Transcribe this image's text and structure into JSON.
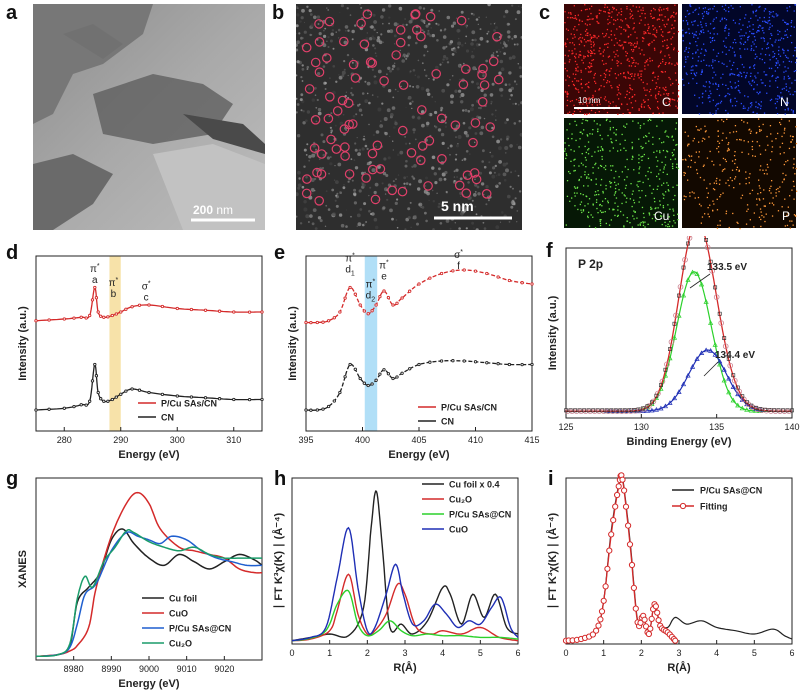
{
  "panels": {
    "a": {
      "label": "a",
      "scale_value": "200",
      "scale_unit": " nm"
    },
    "b": {
      "label": "b",
      "scale": "5 nm"
    },
    "c": {
      "label": "c",
      "scale": "10 nm",
      "tiles": [
        "C",
        "N",
        "Cu",
        "P"
      ]
    },
    "d": {
      "label": "d"
    },
    "e": {
      "label": "e"
    },
    "f": {
      "label": "f"
    },
    "g": {
      "label": "g"
    },
    "h": {
      "label": "h"
    },
    "i": {
      "label": "i"
    }
  },
  "colors": {
    "red": "#d42a2a",
    "black": "#222222",
    "green": "#2bd12b",
    "blue": "#1f2fb5",
    "navy": "#1c1c8a",
    "teal": "#1a9c6a",
    "highlight_yellow": "#f6dfa0",
    "highlight_blue": "#a9dcf6"
  },
  "chart_data": [
    {
      "id": "d",
      "type": "line",
      "xlabel": "Energy (eV)",
      "ylabel": "Intensity (a.u.)",
      "xlim": [
        275,
        315
      ],
      "xticks": [
        "280",
        "290",
        "300",
        "310"
      ],
      "highlight": [
        288,
        290
      ],
      "annotations": [
        {
          "sym": "π",
          "sup": "*",
          "letter": "a",
          "x": 285.4
        },
        {
          "sym": "π",
          "sup": "*",
          "letter": "b",
          "x": 288.7
        },
        {
          "sym": "σ",
          "sup": "*",
          "letter": "c",
          "x": 294.5
        }
      ],
      "series": [
        {
          "name": "P/Cu SAs/CN",
          "color": "#d42a2a",
          "x": [
            275,
            280,
            283,
            284.5,
            285.4,
            286,
            287,
            288.5,
            290,
            292,
            295,
            300,
            305,
            310,
            315
          ],
          "y": [
            0.63,
            0.64,
            0.65,
            0.66,
            0.82,
            0.68,
            0.65,
            0.66,
            0.68,
            0.71,
            0.72,
            0.7,
            0.69,
            0.68,
            0.68
          ]
        },
        {
          "name": "CN",
          "color": "#222222",
          "x": [
            275,
            280,
            283,
            284.5,
            285.4,
            286,
            287,
            288.5,
            290,
            292,
            295,
            300,
            305,
            310,
            315
          ],
          "y": [
            0.12,
            0.13,
            0.15,
            0.17,
            0.38,
            0.22,
            0.17,
            0.18,
            0.21,
            0.24,
            0.22,
            0.2,
            0.19,
            0.18,
            0.18
          ]
        }
      ]
    },
    {
      "id": "e",
      "type": "line",
      "xlabel": "Energy (eV)",
      "ylabel": "Intensity (a.u.)",
      "xlim": [
        395,
        415
      ],
      "xticks": [
        "395",
        "400",
        "405",
        "410",
        "415"
      ],
      "highlight": [
        400.2,
        401.3
      ],
      "annotations": [
        {
          "sym": "π",
          "sup": "*",
          "letter": "d",
          "sub": "1",
          "x": 398.9
        },
        {
          "sym": "π",
          "sup": "*",
          "letter": "d",
          "sub": "2",
          "x": 400.7
        },
        {
          "sym": "π",
          "sup": "*",
          "letter": "e",
          "x": 401.9
        },
        {
          "sym": "σ",
          "sup": "*",
          "letter": "f",
          "x": 408.5
        }
      ],
      "series": [
        {
          "name": "P/Cu SAs/CN",
          "color": "#d42a2a",
          "x": [
            395,
            396,
            397,
            398,
            398.9,
            399.8,
            400.5,
            401.2,
            401.9,
            402.7,
            403.5,
            405,
            407,
            409,
            411,
            413,
            415
          ],
          "y": [
            0.62,
            0.62,
            0.63,
            0.68,
            0.82,
            0.72,
            0.67,
            0.72,
            0.8,
            0.72,
            0.76,
            0.84,
            0.9,
            0.92,
            0.9,
            0.86,
            0.84
          ]
        },
        {
          "name": "CN",
          "color": "#222222",
          "x": [
            395,
            396,
            397,
            398,
            398.9,
            399.8,
            400.5,
            401.2,
            401.9,
            402.7,
            403.5,
            405,
            407,
            409,
            411,
            413,
            415
          ],
          "y": [
            0.12,
            0.12,
            0.14,
            0.22,
            0.38,
            0.3,
            0.26,
            0.29,
            0.35,
            0.3,
            0.33,
            0.38,
            0.4,
            0.4,
            0.39,
            0.38,
            0.38
          ]
        }
      ]
    },
    {
      "id": "f",
      "type": "scatter",
      "title": "P 2p",
      "xlabel": "Binding Energy (eV)",
      "ylabel": "Intensity (a.u.)",
      "xlim": [
        125,
        140
      ],
      "xticks": [
        "125",
        "130",
        "135",
        "140"
      ],
      "peaks": [
        {
          "label": "133.5 eV",
          "center": 133.5,
          "amp": 0.82,
          "sigma": 1.15,
          "color": "#2bd12b"
        },
        {
          "label": "134.4 eV",
          "center": 134.4,
          "amp": 0.36,
          "sigma": 1.25,
          "color": "#1f2fb5"
        }
      ],
      "envelope_color": "#d42a2a",
      "data_color": "#c98090"
    },
    {
      "id": "g",
      "type": "line",
      "xlabel": "Energy (eV)",
      "ylabel": "XANES",
      "xlim": [
        8970,
        9030
      ],
      "xticks": [
        "8980",
        "8990",
        "9000",
        "9010",
        "9020"
      ],
      "series": [
        {
          "name": "Cu foil",
          "color": "#222222",
          "x": [
            8970,
            8976,
            8979,
            8981,
            8984,
            8987,
            8990,
            8993,
            8996,
            9000,
            9004,
            9008,
            9012,
            9016,
            9020,
            9024,
            9028,
            9030
          ],
          "y": [
            0.02,
            0.03,
            0.08,
            0.32,
            0.4,
            0.48,
            0.66,
            0.72,
            0.64,
            0.56,
            0.52,
            0.58,
            0.54,
            0.5,
            0.54,
            0.58,
            0.55,
            0.52
          ]
        },
        {
          "name": "CuO",
          "color": "#d42a2a",
          "x": [
            8970,
            8976,
            8979,
            8981,
            8984,
            8986,
            8990,
            8994,
            8997,
            9000,
            9003,
            9008,
            9012,
            9016,
            9020,
            9024,
            9028,
            9030
          ],
          "y": [
            0.02,
            0.03,
            0.05,
            0.08,
            0.18,
            0.4,
            0.68,
            0.86,
            0.92,
            0.86,
            0.72,
            0.62,
            0.6,
            0.58,
            0.56,
            0.5,
            0.48,
            0.48
          ]
        },
        {
          "name": "P/Cu SAs@CN",
          "color": "#1f5fcf",
          "x": [
            8970,
            8976,
            8979,
            8981,
            8983,
            8986,
            8990,
            8994,
            8997,
            9000,
            9003,
            9006,
            9010,
            9014,
            9018,
            9022,
            9026,
            9030
          ],
          "y": [
            0.02,
            0.03,
            0.07,
            0.2,
            0.36,
            0.42,
            0.6,
            0.7,
            0.68,
            0.66,
            0.64,
            0.68,
            0.66,
            0.6,
            0.56,
            0.54,
            0.52,
            0.52
          ]
        },
        {
          "name": "Cu₂O",
          "color": "#1a9c6a",
          "x": [
            8970,
            8976,
            8979,
            8981,
            8983,
            8985,
            8988,
            8991,
            8994,
            8996,
            9000,
            9004,
            9008,
            9012,
            9016,
            9020,
            9024,
            9030
          ],
          "y": [
            0.02,
            0.03,
            0.09,
            0.34,
            0.46,
            0.4,
            0.54,
            0.62,
            0.71,
            0.7,
            0.65,
            0.62,
            0.6,
            0.62,
            0.58,
            0.56,
            0.56,
            0.56
          ]
        }
      ]
    },
    {
      "id": "h",
      "type": "line",
      "xlabel": "R(Å)",
      "ylabel": "∣ FT K³χ(K) ∣ (Å⁻⁴)",
      "xlim": [
        0,
        6
      ],
      "xticks": [
        "0",
        "1",
        "2",
        "3",
        "4",
        "5",
        "6"
      ],
      "series": [
        {
          "name": "Cu foil x 0.4",
          "color": "#222222",
          "x": [
            0,
            0.5,
            1.0,
            1.5,
            1.9,
            2.1,
            2.24,
            2.4,
            2.6,
            2.9,
            3.2,
            3.6,
            4.0,
            4.2,
            4.5,
            4.8,
            5.1,
            5.4,
            5.7,
            6.0
          ],
          "y": [
            0.02,
            0.04,
            0.06,
            0.05,
            0.22,
            0.7,
            0.92,
            0.58,
            0.1,
            0.12,
            0.06,
            0.14,
            0.34,
            0.3,
            0.12,
            0.3,
            0.16,
            0.3,
            0.1,
            0.06
          ]
        },
        {
          "name": "Cu₂O",
          "color": "#d42a2a",
          "x": [
            0,
            0.5,
            1.0,
            1.2,
            1.5,
            1.75,
            2.0,
            2.2,
            2.5,
            2.8,
            3.0,
            3.3,
            3.7,
            4.0,
            4.5,
            5.0,
            5.5,
            6.0
          ],
          "y": [
            0.02,
            0.03,
            0.08,
            0.2,
            0.42,
            0.18,
            0.06,
            0.08,
            0.18,
            0.36,
            0.3,
            0.1,
            0.06,
            0.08,
            0.06,
            0.1,
            0.04,
            0.02
          ]
        },
        {
          "name": "P/Cu SAs@CN",
          "color": "#2bd12b",
          "x": [
            0,
            0.4,
            0.8,
            1.0,
            1.2,
            1.5,
            1.75,
            2.0,
            2.3,
            2.6,
            2.9,
            3.2,
            3.6,
            4.0,
            4.5,
            5.0,
            5.5,
            6.0
          ],
          "y": [
            0.02,
            0.03,
            0.06,
            0.12,
            0.24,
            0.32,
            0.12,
            0.05,
            0.08,
            0.14,
            0.08,
            0.05,
            0.06,
            0.05,
            0.05,
            0.04,
            0.04,
            0.03
          ]
        },
        {
          "name": "CuO",
          "color": "#1f2fb5",
          "x": [
            0,
            0.5,
            0.9,
            1.2,
            1.5,
            1.75,
            2.0,
            2.2,
            2.5,
            2.75,
            2.95,
            3.2,
            3.5,
            3.8,
            4.1,
            4.4,
            4.7,
            5.0,
            5.3,
            5.55,
            5.8,
            6.0
          ],
          "y": [
            0.02,
            0.04,
            0.1,
            0.4,
            0.7,
            0.34,
            0.08,
            0.1,
            0.3,
            0.48,
            0.3,
            0.12,
            0.14,
            0.24,
            0.18,
            0.1,
            0.14,
            0.12,
            0.22,
            0.28,
            0.1,
            0.04
          ]
        }
      ]
    },
    {
      "id": "i",
      "type": "line",
      "xlabel": "R(Å)",
      "ylabel": "∣ FT K³χ(K) ∣ (Å⁻⁴)",
      "xlim": [
        0,
        6
      ],
      "xticks": [
        "0",
        "1",
        "2",
        "3",
        "4",
        "5",
        "6"
      ],
      "series": [
        {
          "name": "P/Cu SAs@CN",
          "color": "#222222",
          "x": [
            0,
            0.4,
            0.8,
            1.0,
            1.2,
            1.4,
            1.5,
            1.7,
            1.9,
            2.05,
            2.2,
            2.35,
            2.5,
            2.7,
            2.9,
            3.2,
            3.6,
            4.0,
            4.5,
            5.0,
            5.5,
            5.8,
            6.0
          ],
          "y": [
            0.02,
            0.03,
            0.08,
            0.26,
            0.68,
            0.96,
            1.0,
            0.62,
            0.14,
            0.17,
            0.06,
            0.24,
            0.12,
            0.1,
            0.16,
            0.12,
            0.14,
            0.1,
            0.08,
            0.06,
            0.09,
            0.05,
            0.03
          ]
        },
        {
          "name": "Fitting",
          "color": "#d42a2a",
          "x": [
            0,
            0.4,
            0.8,
            1.0,
            1.2,
            1.4,
            1.5,
            1.7,
            1.9,
            2.05,
            2.2,
            2.35,
            2.5,
            2.7,
            2.9
          ],
          "y": [
            0.02,
            0.03,
            0.08,
            0.26,
            0.66,
            0.95,
            0.99,
            0.6,
            0.13,
            0.17,
            0.06,
            0.24,
            0.11,
            0.07,
            0.02
          ]
        }
      ]
    }
  ]
}
